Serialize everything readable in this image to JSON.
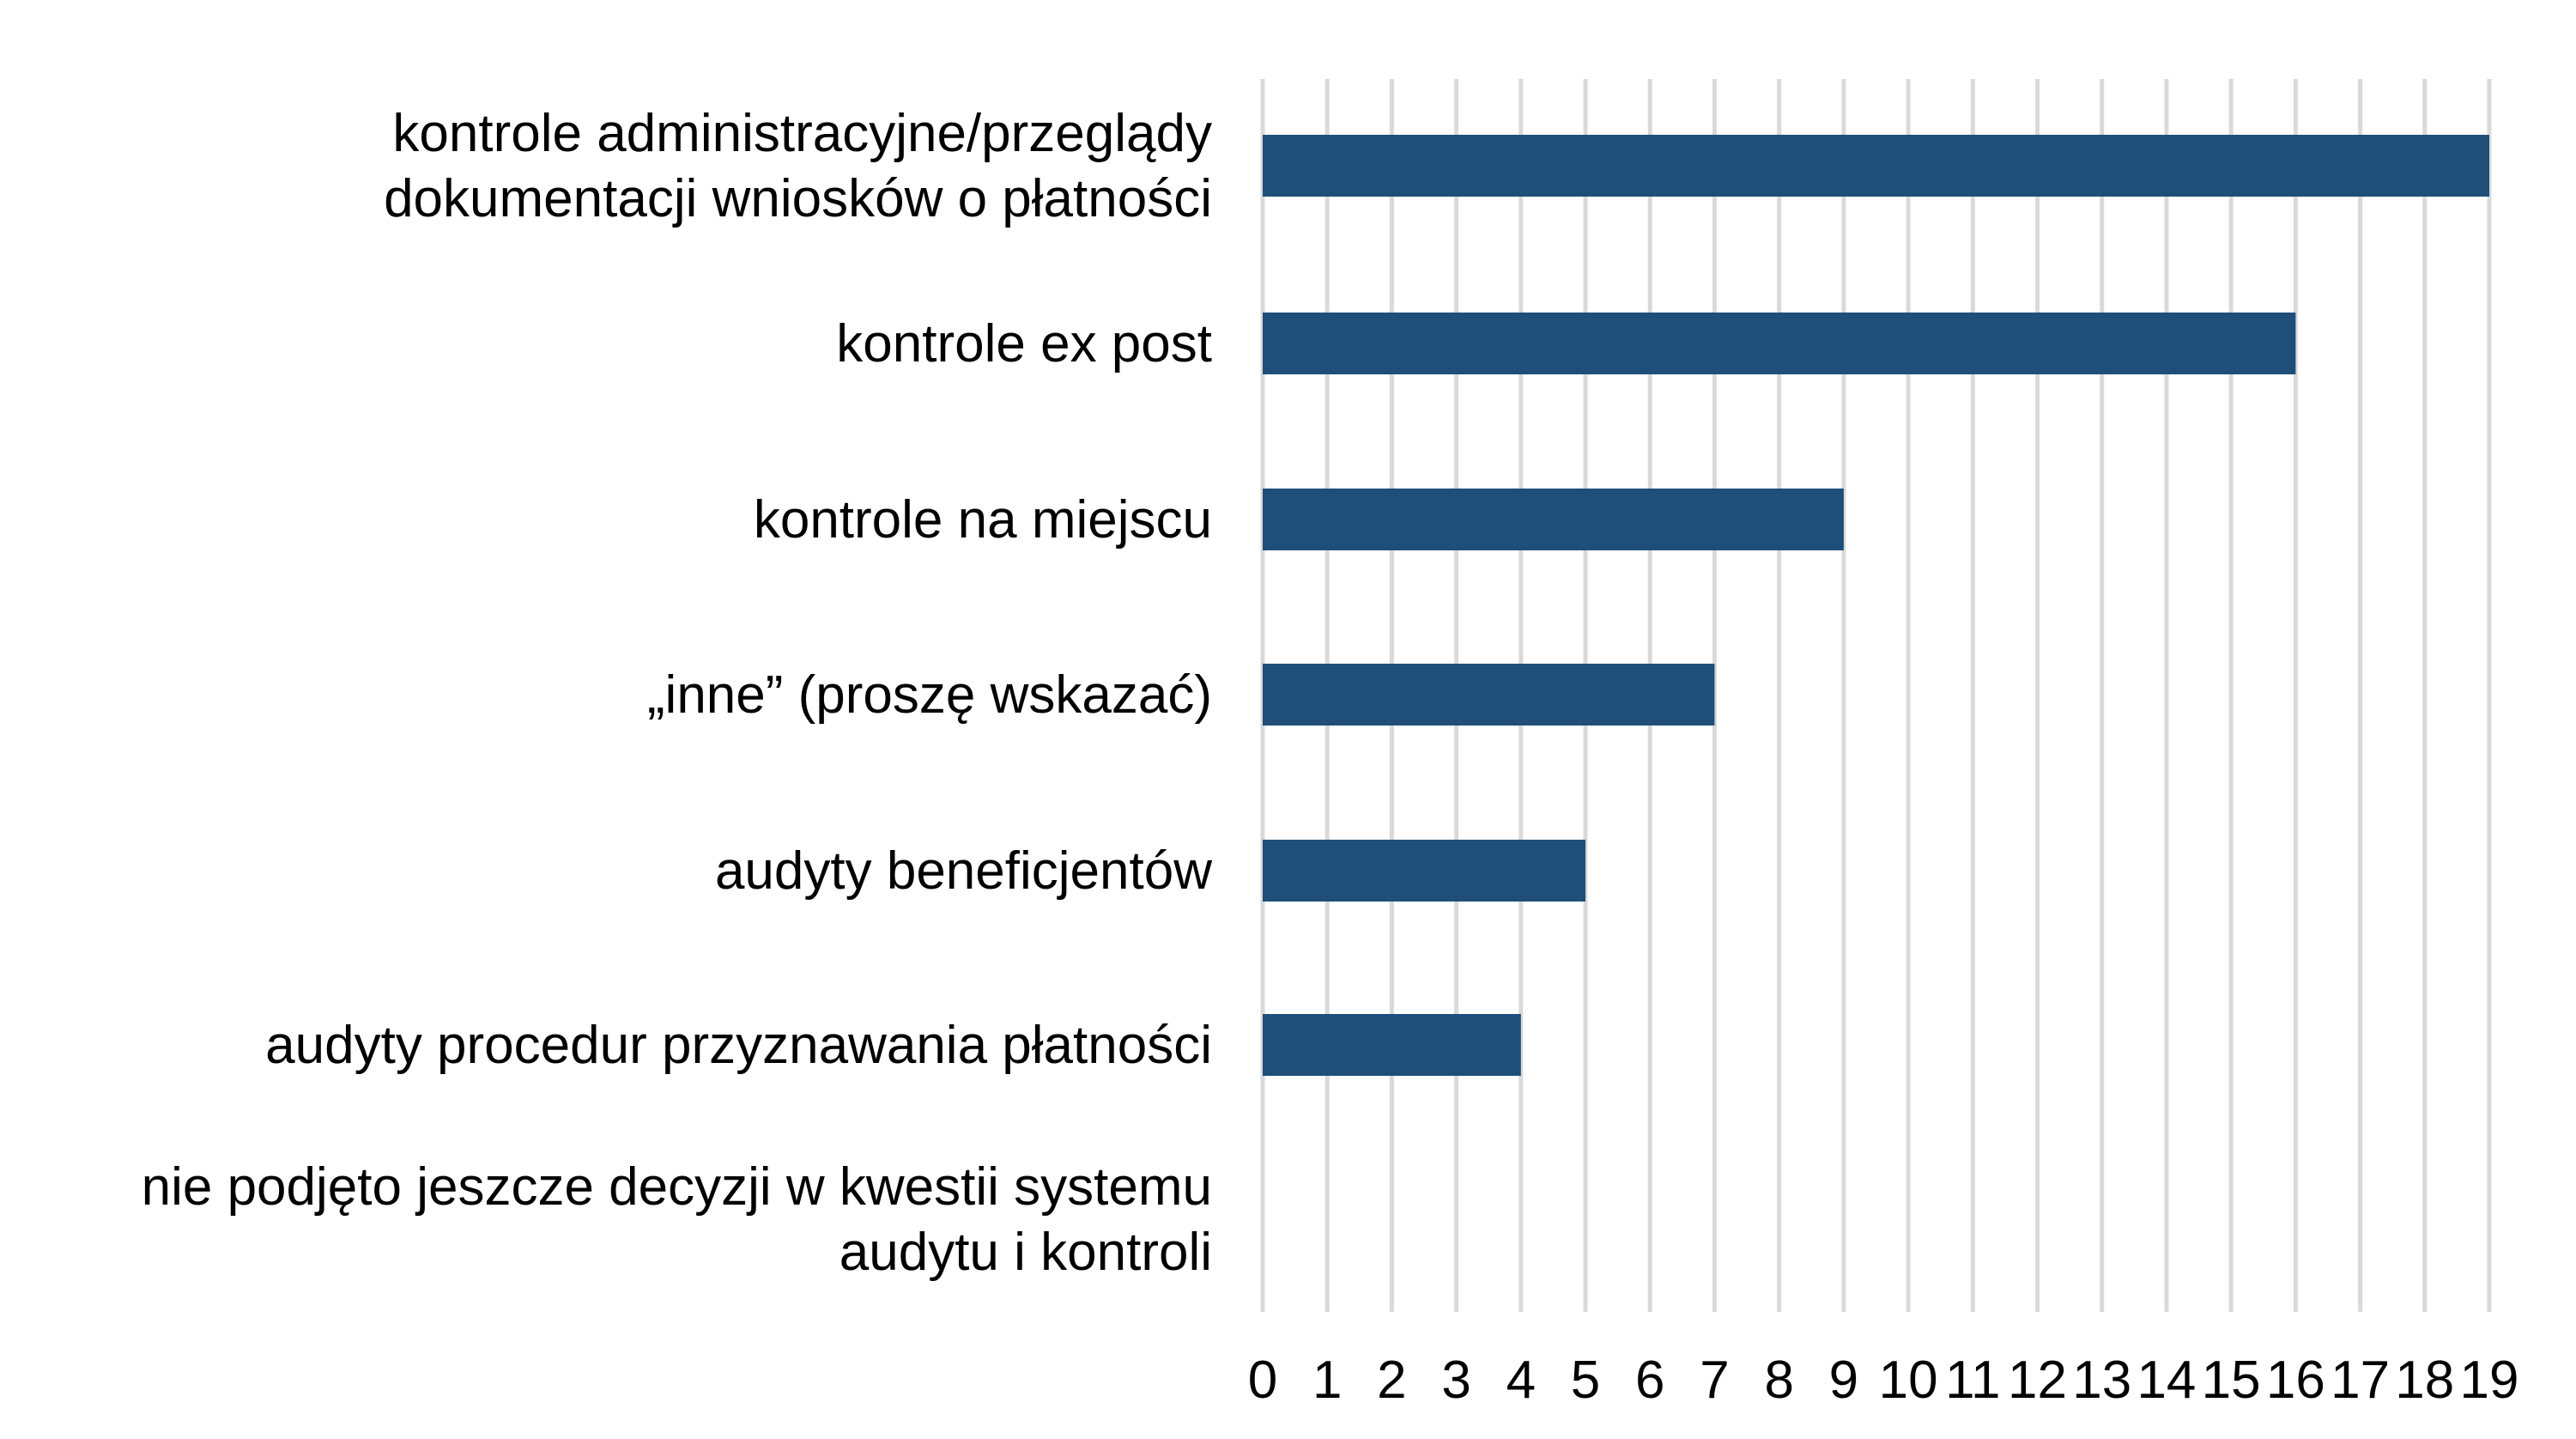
{
  "chart_data": {
    "type": "bar",
    "orientation": "horizontal",
    "categories": [
      "kontrole administracyjne/przeglądy dokumentacji wniosków o płatności",
      "kontrole ex post",
      "kontrole na miejscu",
      "„inne” (proszę wskazać)",
      "audyty beneficjentów",
      "audyty procedur przyznawania płatności",
      "nie podjęto jeszcze decyzji w kwestii systemu audytu i kontroli"
    ],
    "category_lines": [
      [
        "kontrole administracyjne/przeglądy",
        "dokumentacji wniosków o płatności"
      ],
      [
        "kontrole ex post"
      ],
      [
        "kontrole na miejscu"
      ],
      [
        "„inne” (proszę wskazać)"
      ],
      [
        "audyty beneficjentów"
      ],
      [
        "audyty procedur przyznawania płatności"
      ],
      [
        "nie podjęto jeszcze decyzji w kwestii systemu",
        "audytu i kontroli"
      ]
    ],
    "values": [
      19,
      16,
      9,
      7,
      5,
      4,
      0
    ],
    "xticks": [
      "0",
      "1",
      "2",
      "3",
      "4",
      "5",
      "6",
      "7",
      "8",
      "9",
      "10",
      "11",
      "12",
      "13",
      "14",
      "15",
      "16",
      "17",
      "18",
      "19"
    ],
    "xlim": [
      0,
      19
    ],
    "grid": "vertical",
    "legend": "none",
    "bar_color": "#1f4e79",
    "grid_color": "#d9d9d9",
    "title": "",
    "xlabel": "",
    "ylabel": ""
  }
}
